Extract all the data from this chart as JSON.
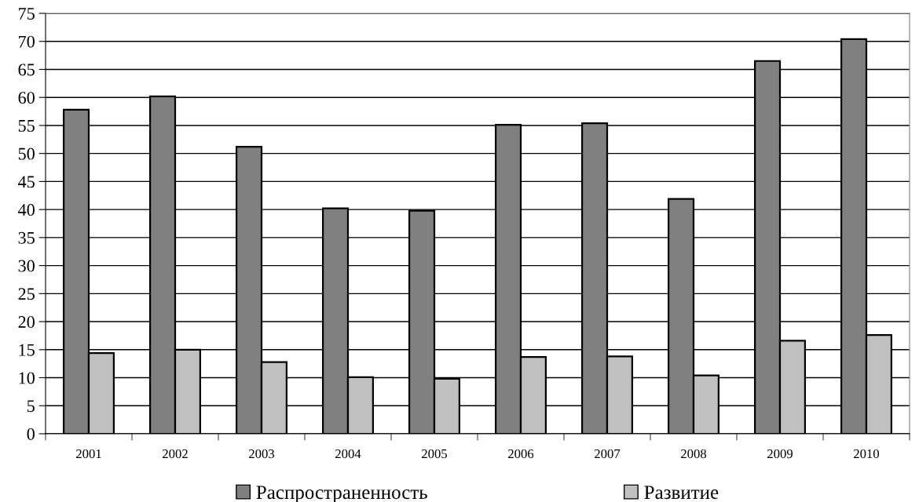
{
  "chart_data": {
    "type": "bar",
    "categories": [
      "2001",
      "2002",
      "2003",
      "2004",
      "2005",
      "2006",
      "2007",
      "2008",
      "2009",
      "2010"
    ],
    "series": [
      {
        "name": "Распространенность",
        "color": "#808080",
        "values": [
          57.8,
          60.2,
          51.2,
          40.2,
          39.8,
          55.1,
          55.4,
          41.9,
          66.5,
          70.4
        ]
      },
      {
        "name": "Развитие",
        "color": "#c0c0c0",
        "values": [
          14.4,
          15.0,
          12.8,
          10.1,
          9.8,
          13.7,
          13.8,
          10.4,
          16.6,
          17.6
        ]
      }
    ],
    "ylim": [
      0,
      75
    ],
    "yticks": [
      0,
      5,
      10,
      15,
      20,
      25,
      30,
      35,
      40,
      45,
      50,
      55,
      60,
      65,
      70,
      75
    ],
    "grid": "y",
    "legend": "bottom"
  }
}
